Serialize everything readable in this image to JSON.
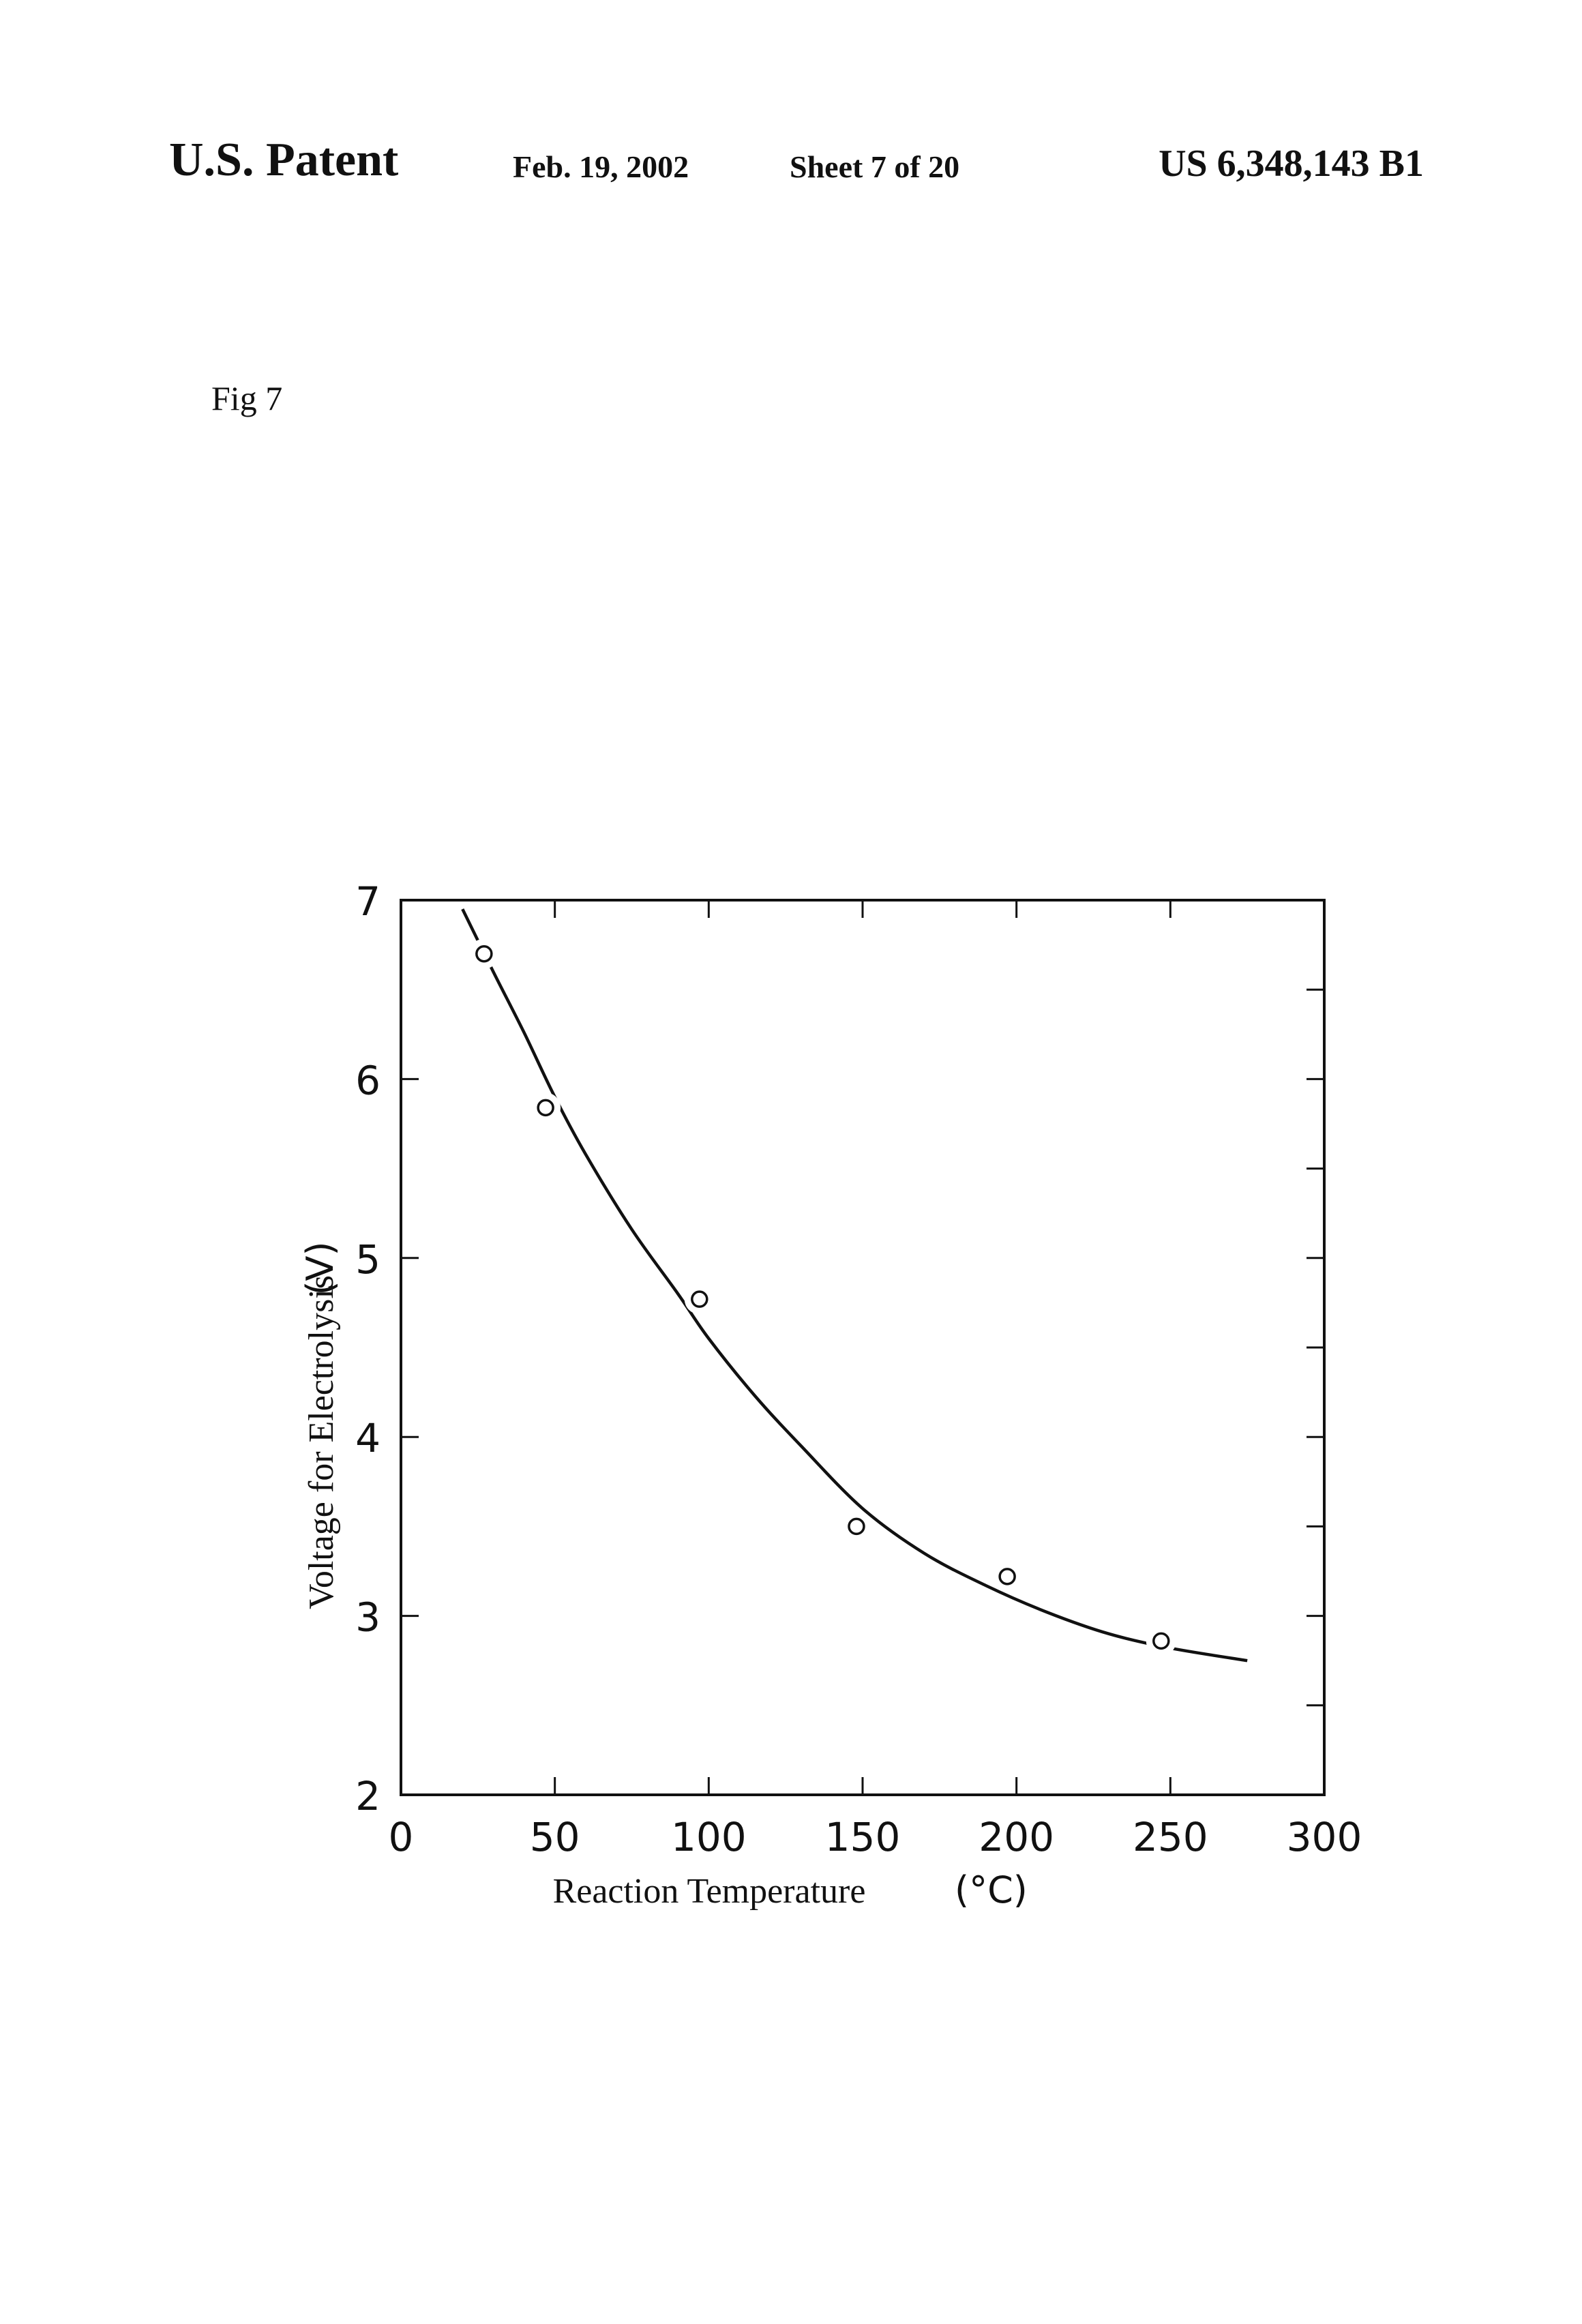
{
  "header": {
    "left": "U.S. Patent",
    "date": "Feb. 19, 2002",
    "sheet": "Sheet 7 of 20",
    "patent_number": "US 6,348,143 B1"
  },
  "figure": {
    "label": "Fig 7"
  },
  "chart_data": {
    "type": "scatter",
    "title": "",
    "xlabel": "Reaction Temperature",
    "xunit": "(°C)",
    "ylabel": "Voltage for Electrolysis",
    "yunit": "(V)",
    "xlim": [
      0,
      300
    ],
    "ylim": [
      2,
      7
    ],
    "x_ticks": [
      0,
      50,
      100,
      150,
      200,
      250,
      300
    ],
    "x_tick_labels": [
      "0",
      "50",
      "100",
      "150",
      "200",
      "250",
      "300"
    ],
    "y_ticks": [
      2,
      3,
      4,
      5,
      6,
      7
    ],
    "y_tick_labels": [
      "2",
      "3",
      "4",
      "5",
      "6",
      "7"
    ],
    "grid": false,
    "series": [
      {
        "marker": "open-circle",
        "points": [
          {
            "x": 27,
            "y": 6.7
          },
          {
            "x": 47,
            "y": 5.84
          },
          {
            "x": 97,
            "y": 4.77
          },
          {
            "x": 148,
            "y": 3.5
          },
          {
            "x": 197,
            "y": 3.22
          },
          {
            "x": 247,
            "y": 2.86
          }
        ]
      },
      {
        "marker": "none",
        "line": "solid-curve",
        "points": [
          {
            "x": 20,
            "y": 6.95
          },
          {
            "x": 30,
            "y": 6.6
          },
          {
            "x": 40,
            "y": 6.26
          },
          {
            "x": 50,
            "y": 5.9
          },
          {
            "x": 60,
            "y": 5.58
          },
          {
            "x": 75,
            "y": 5.16
          },
          {
            "x": 90,
            "y": 4.8
          },
          {
            "x": 100,
            "y": 4.55
          },
          {
            "x": 115,
            "y": 4.23
          },
          {
            "x": 130,
            "y": 3.95
          },
          {
            "x": 150,
            "y": 3.6
          },
          {
            "x": 170,
            "y": 3.35
          },
          {
            "x": 190,
            "y": 3.17
          },
          {
            "x": 210,
            "y": 3.02
          },
          {
            "x": 230,
            "y": 2.9
          },
          {
            "x": 250,
            "y": 2.82
          },
          {
            "x": 275,
            "y": 2.75
          }
        ]
      }
    ]
  }
}
